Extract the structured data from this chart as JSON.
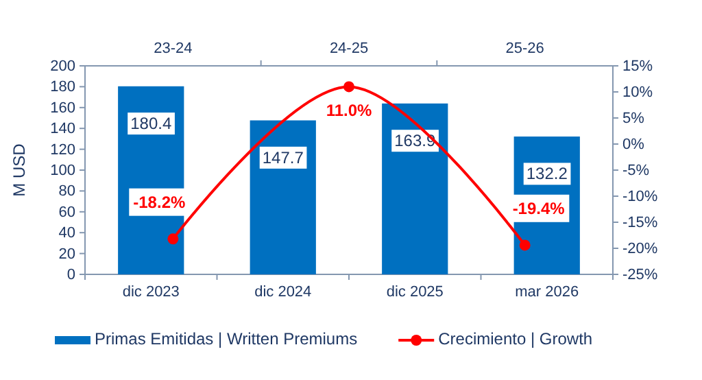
{
  "chart_data": [
    {
      "type": "bar",
      "ylabel": "M  USD",
      "categories": [
        "dic 2023",
        "dic 2024",
        "dic 2025",
        "mar 2026"
      ],
      "series": [
        {
          "name": "Primas Emitidas | Written Premiums",
          "color": "#0070c0",
          "values": [
            180.4,
            147.7,
            163.9,
            132.2
          ],
          "value_labels": [
            "180.4",
            "147.7",
            "163.9",
            "132.2"
          ]
        }
      ],
      "ylim": [
        0,
        200
      ],
      "yticks": [
        0,
        20,
        40,
        60,
        80,
        100,
        120,
        140,
        160,
        180,
        200
      ],
      "grid": false,
      "legend": "bottom"
    },
    {
      "type": "line",
      "categories": [
        "23-24",
        "24-25",
        "25-26"
      ],
      "series": [
        {
          "name": "Crecimiento | Growth",
          "color": "#ff0000",
          "values": [
            -18.2,
            11.0,
            -19.4
          ],
          "value_labels": [
            "-18.2%",
            "11.0%",
            "-19.4%"
          ]
        }
      ],
      "ylim": [
        -25,
        15
      ],
      "yticks": [
        {
          "value": -25,
          "label": "-25%"
        },
        {
          "value": -20,
          "label": "-20%"
        },
        {
          "value": -15,
          "label": "-15%"
        },
        {
          "value": -10,
          "label": "-10%"
        },
        {
          "value": -5,
          "label": "-5%"
        },
        {
          "value": 0,
          "label": "0%"
        },
        {
          "value": 5,
          "label": "5%"
        },
        {
          "value": 10,
          "label": "10%"
        },
        {
          "value": 15,
          "label": "15%"
        }
      ],
      "marker": "circle",
      "line_style": "solid",
      "grid": false,
      "legend": "bottom"
    }
  ]
}
